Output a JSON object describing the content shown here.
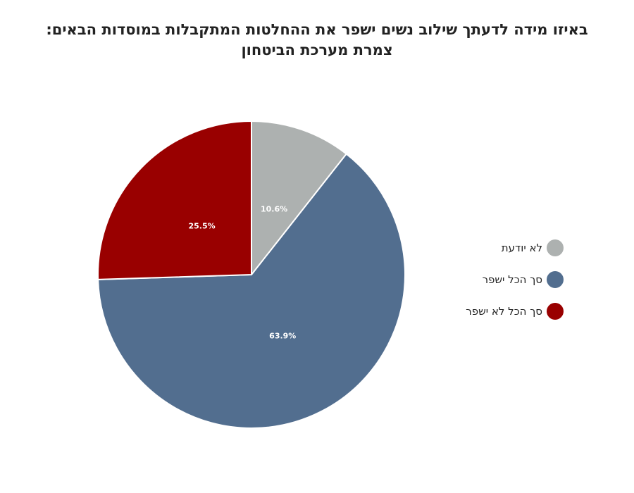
{
  "chart_data": {
    "type": "pie",
    "title": "באיזו מידה לדעתך שילוב נשים ישפר את ההחלטות המתקבלות במוסדות הבאים:",
    "subtitle": "צמרת מערכת הביטחון",
    "legend_position": "right",
    "slices": [
      {
        "name": "לא יודעת",
        "value": 10.6,
        "label": "10.6%",
        "color": "#adb1b0"
      },
      {
        "name": "סך הכל ישפר",
        "value": 63.9,
        "label": "63.9%",
        "color": "#526e8f"
      },
      {
        "name": "סך הכל לא ישפר",
        "value": 25.5,
        "label": "25.5%",
        "color": "#990000"
      }
    ]
  }
}
